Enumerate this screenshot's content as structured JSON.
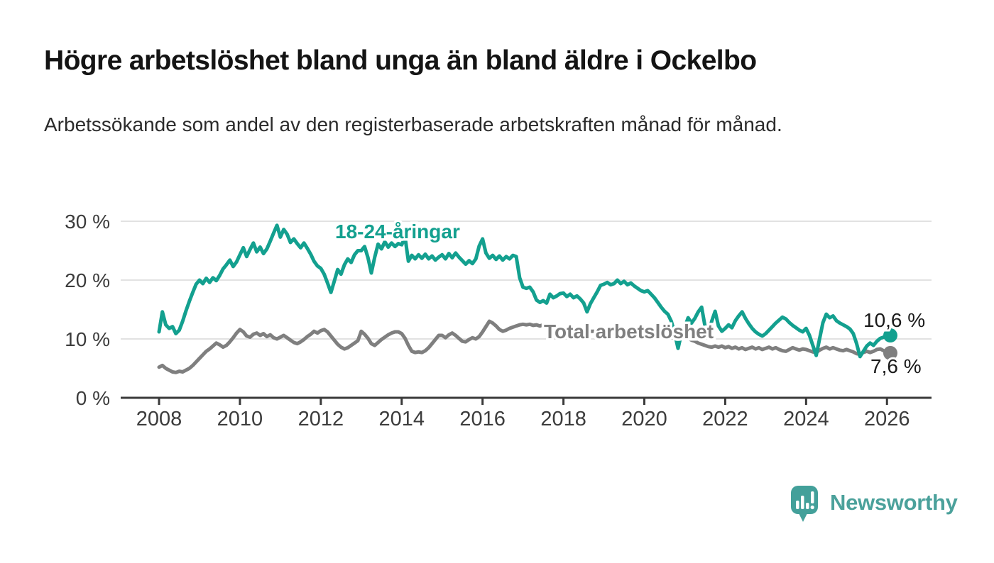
{
  "header": {
    "title": "Högre arbetslöshet bland unga än bland äldre i Ockelbo",
    "subtitle": "Arbetssökande som andel av den registerbaserade arbetskraften månad för månad."
  },
  "colors": {
    "accent_teal": "#13a08f",
    "series_gray": "#7f7f7f",
    "axis": "#3a3a3a",
    "gridline": "#e2e2e2",
    "text_dark": "#1a1a1a",
    "logo_teal": "#4ba19b"
  },
  "logo": {
    "brand": "Newsworthy",
    "icon": "speech-bubble-bar-chart-icon"
  },
  "chart_data": {
    "type": "line",
    "title": "Högre arbetslöshet bland unga än bland äldre i Ockelbo",
    "subtitle": "Arbetssökande som andel av den registerbaserade arbetskraften månad för månad.",
    "xlabel": "",
    "ylabel": "",
    "x_start_year": 2008,
    "x_step_months": 1,
    "x_end": "2026-02",
    "xlim": [
      2007.0,
      2027.0
    ],
    "ylim": [
      0,
      33
    ],
    "grid": "horizontal",
    "y_grid_values": [
      10,
      20,
      30
    ],
    "y_tick_values": [
      0,
      10,
      20,
      30
    ],
    "y_tick_labels": [
      "0 %",
      "10 %",
      "20 %",
      "30 %"
    ],
    "x_tick_labels": [
      "2008",
      "2010",
      "2012",
      "2014",
      "2016",
      "2018",
      "2020",
      "2022",
      "2024",
      "2026"
    ],
    "legend_position": "inline-labels",
    "series": [
      {
        "name": "18-24-åringar",
        "color": "#13a08f",
        "end_label": "10,6 %",
        "end_value": 10.6,
        "values": [
          11.2,
          14.6,
          12.4,
          11.8,
          12.1,
          10.9,
          11.5,
          13.0,
          14.8,
          16.4,
          17.9,
          19.3,
          20.0,
          19.4,
          20.3,
          19.6,
          20.4,
          19.9,
          20.8,
          21.9,
          22.6,
          23.4,
          22.3,
          23.1,
          24.3,
          25.5,
          24.0,
          25.2,
          26.3,
          24.8,
          25.6,
          24.5,
          25.3,
          26.6,
          28.0,
          29.3,
          27.3,
          28.6,
          27.8,
          26.4,
          27.0,
          26.2,
          25.5,
          26.3,
          25.4,
          24.4,
          23.2,
          22.4,
          22.0,
          21.0,
          19.5,
          17.9,
          19.8,
          21.8,
          21.0,
          22.6,
          23.6,
          23.0,
          24.3,
          25.0,
          25.0,
          25.7,
          23.8,
          21.2,
          23.9,
          26.1,
          25.3,
          26.5,
          25.6,
          26.3,
          25.7,
          26.2,
          26.0,
          27.3,
          23.2,
          24.2,
          23.6,
          24.3,
          23.7,
          24.4,
          23.6,
          24.1,
          23.4,
          23.9,
          24.3,
          23.6,
          24.5,
          23.8,
          24.6,
          23.9,
          23.3,
          22.7,
          23.3,
          22.8,
          23.6,
          25.8,
          27.0,
          24.6,
          23.7,
          24.2,
          23.5,
          24.1,
          23.4,
          24.0,
          23.6,
          24.2,
          24.0,
          20.4,
          18.8,
          18.6,
          18.8,
          18.0,
          16.6,
          16.2,
          16.5,
          16.1,
          17.6,
          17.0,
          17.3,
          17.7,
          17.8,
          17.2,
          17.6,
          17.0,
          17.3,
          16.8,
          16.1,
          14.6,
          16.0,
          17.0,
          18.0,
          19.1,
          19.3,
          19.6,
          19.2,
          19.4,
          20.0,
          19.4,
          19.8,
          19.2,
          19.5,
          19.0,
          18.6,
          18.2,
          18.0,
          18.2,
          17.6,
          17.0,
          16.2,
          15.4,
          14.7,
          14.2,
          13.0,
          11.0,
          8.4,
          10.9,
          12.0,
          13.6,
          12.7,
          13.5,
          14.6,
          15.4,
          12.2,
          10.9,
          13.0,
          14.7,
          12.2,
          11.3,
          11.8,
          12.4,
          11.9,
          13.1,
          13.9,
          14.6,
          13.5,
          12.6,
          11.8,
          11.2,
          10.8,
          10.5,
          10.9,
          11.5,
          12.1,
          12.7,
          13.2,
          13.7,
          13.4,
          12.8,
          12.3,
          11.9,
          11.5,
          11.2,
          11.8,
          10.6,
          8.9,
          7.2,
          10.0,
          12.8,
          14.2,
          13.6,
          13.9,
          13.1,
          12.7,
          12.4,
          12.1,
          11.7,
          10.9,
          9.2,
          7.0,
          7.9,
          8.8,
          9.3,
          8.9,
          9.6,
          10.1,
          10.3,
          10.4,
          10.6
        ]
      },
      {
        "name": "Total arbetslöshet",
        "color": "#7f7f7f",
        "end_label": "7,6 %",
        "end_value": 7.6,
        "values": [
          5.2,
          5.5,
          5.0,
          4.7,
          4.4,
          4.3,
          4.5,
          4.4,
          4.7,
          5.0,
          5.5,
          6.1,
          6.7,
          7.3,
          7.9,
          8.3,
          8.8,
          9.3,
          9.0,
          8.6,
          8.9,
          9.5,
          10.2,
          11.0,
          11.6,
          11.2,
          10.5,
          10.3,
          10.8,
          11.0,
          10.6,
          10.9,
          10.4,
          10.7,
          10.2,
          10.0,
          10.3,
          10.6,
          10.2,
          9.8,
          9.4,
          9.2,
          9.5,
          9.9,
          10.4,
          10.8,
          11.3,
          11.0,
          11.4,
          11.6,
          11.2,
          10.5,
          9.8,
          9.1,
          8.6,
          8.3,
          8.5,
          8.9,
          9.3,
          9.7,
          11.3,
          10.8,
          10.1,
          9.2,
          8.9,
          9.4,
          9.9,
          10.3,
          10.7,
          11.0,
          11.2,
          11.2,
          10.9,
          10.1,
          8.9,
          7.9,
          7.7,
          7.8,
          7.7,
          8.0,
          8.5,
          9.2,
          9.9,
          10.6,
          10.6,
          10.2,
          10.7,
          11.0,
          10.6,
          10.1,
          9.6,
          9.5,
          9.9,
          10.2,
          10.0,
          10.4,
          11.2,
          12.1,
          13.0,
          12.7,
          12.2,
          11.6,
          11.3,
          11.5,
          11.8,
          12.0,
          12.2,
          12.4,
          12.5,
          12.4,
          12.5,
          12.3,
          12.4,
          12.2,
          12.4,
          12.3,
          12.2,
          12.1,
          12.0,
          11.9,
          11.8,
          11.7,
          11.6,
          11.6,
          11.5,
          11.5,
          11.4,
          11.4,
          11.3,
          11.3,
          11.2,
          11.2,
          11.1,
          11.1,
          11.0,
          11.0,
          10.9,
          10.9,
          10.8,
          10.8,
          10.7,
          10.7,
          10.6,
          10.6,
          10.5,
          10.6,
          10.8,
          11.0,
          10.8,
          10.6,
          10.4,
          10.3,
          10.2,
          10.4,
          10.2,
          10.3,
          10.4,
          10.1,
          9.8,
          9.6,
          9.3,
          9.1,
          8.9,
          8.7,
          8.6,
          8.8,
          8.6,
          8.8,
          8.5,
          8.7,
          8.4,
          8.6,
          8.3,
          8.5,
          8.2,
          8.4,
          8.6,
          8.3,
          8.5,
          8.2,
          8.4,
          8.6,
          8.3,
          8.5,
          8.2,
          8.0,
          7.9,
          8.2,
          8.5,
          8.3,
          8.1,
          8.3,
          8.2,
          8.0,
          7.8,
          7.7,
          8.1,
          8.4,
          8.6,
          8.3,
          8.5,
          8.3,
          8.1,
          8.0,
          8.2,
          8.0,
          7.8,
          7.5,
          7.4,
          7.7,
          7.9,
          7.7,
          7.9,
          8.2,
          8.3,
          8.0,
          7.7,
          7.6
        ]
      }
    ]
  }
}
